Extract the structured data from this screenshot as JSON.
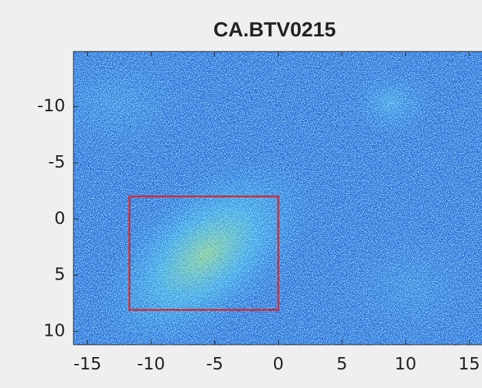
{
  "chart_data": {
    "type": "image",
    "title": "CA.BTV0215",
    "xlim": [
      -16.1,
      15.9
    ],
    "xticks": [
      -15,
      -10,
      -5,
      0,
      5,
      10,
      15
    ],
    "ylim": [
      -14.9,
      11.2
    ],
    "yticks": [
      -10,
      -5,
      0,
      5,
      10
    ],
    "y_reversed": true,
    "roi": {
      "x": [
        -11.7,
        0
      ],
      "y": [
        -2,
        8.1
      ],
      "color": "#d62728"
    }
  }
}
